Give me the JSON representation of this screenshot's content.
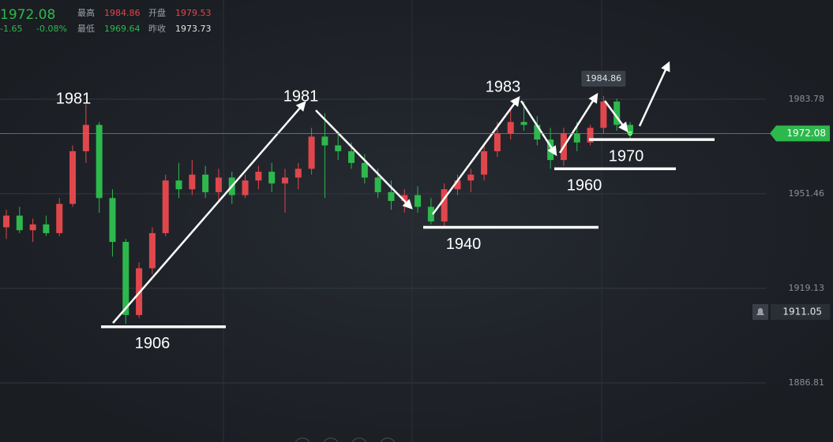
{
  "header": {
    "price": 1972.08,
    "change": "-1.65",
    "change_pct": "-0.08%",
    "high_label": "最高",
    "high": "1984.86",
    "open_label": "开盘",
    "open": "1979.53",
    "low_label": "最低",
    "low": "1969.64",
    "prev_label": "昨收",
    "prev": "1973.73"
  },
  "chart_data": {
    "type": "candlestick",
    "up_color": "#e0474c",
    "down_color": "#2db84d",
    "ylim": [
      1866.6,
      2017.7
    ],
    "yticks": [
      1983.78,
      1951.46,
      1919.13,
      1886.81
    ],
    "grid": true,
    "open": [
      1940,
      1944,
      1939,
      1941,
      1938,
      1948,
      1966,
      1975,
      1950,
      1935,
      1910,
      1926,
      1938,
      1956,
      1953,
      1958,
      1952,
      1957,
      1951,
      1956,
      1959,
      1955,
      1957,
      1960,
      1971,
      1968,
      1966,
      1962,
      1957,
      1952,
      1949,
      1951,
      1947,
      1942,
      1953,
      1956,
      1958,
      1966,
      1972,
      1976,
      1975,
      1970,
      1963,
      1972,
      1969,
      1974,
      1983,
      1975
    ],
    "high": [
      1946,
      1947,
      1943,
      1944,
      1950,
      1968,
      1982,
      1976,
      1953,
      1936,
      1928,
      1940,
      1958,
      1962,
      1963,
      1961,
      1960,
      1959,
      1958,
      1961,
      1962,
      1960,
      1962,
      1974,
      1979,
      1972,
      1969,
      1965,
      1960,
      1956,
      1953,
      1954,
      1950,
      1955,
      1958,
      1960,
      1968,
      1976,
      1980,
      1983,
      1978,
      1974,
      1974,
      1976,
      1975,
      1984.86,
      1984,
      1976
    ],
    "low": [
      1936,
      1938,
      1935,
      1937,
      1937,
      1947,
      1962,
      1945,
      1930,
      1907,
      1909,
      1924,
      1937,
      1950,
      1951,
      1950,
      1949,
      1948,
      1950,
      1953,
      1952,
      1945,
      1953,
      1958,
      1950,
      1963,
      1960,
      1955,
      1950,
      1946,
      1945,
      1945,
      1941,
      1940,
      1951,
      1952,
      1956,
      1964,
      1970,
      1973,
      1968,
      1960,
      1961,
      1966,
      1968,
      1972,
      1973,
      1970
    ],
    "close": [
      1944,
      1939,
      1941,
      1938,
      1948,
      1966,
      1975,
      1950,
      1935,
      1910,
      1926,
      1938,
      1956,
      1953,
      1958,
      1952,
      1957,
      1951,
      1956,
      1959,
      1955,
      1957,
      1960,
      1971,
      1968,
      1966,
      1962,
      1957,
      1952,
      1949,
      1951,
      1947,
      1942,
      1953,
      1956,
      1958,
      1966,
      1972,
      1976,
      1975,
      1970,
      1963,
      1972,
      1969,
      1974,
      1983,
      1975,
      1972.08
    ],
    "peak_labels": [
      1981,
      1981,
      1983
    ],
    "support_levels": [
      1906,
      1940,
      1960,
      1970
    ],
    "max_marker": 1984.86,
    "last_price": 1972.08,
    "alert_price": 1911.05
  }
}
